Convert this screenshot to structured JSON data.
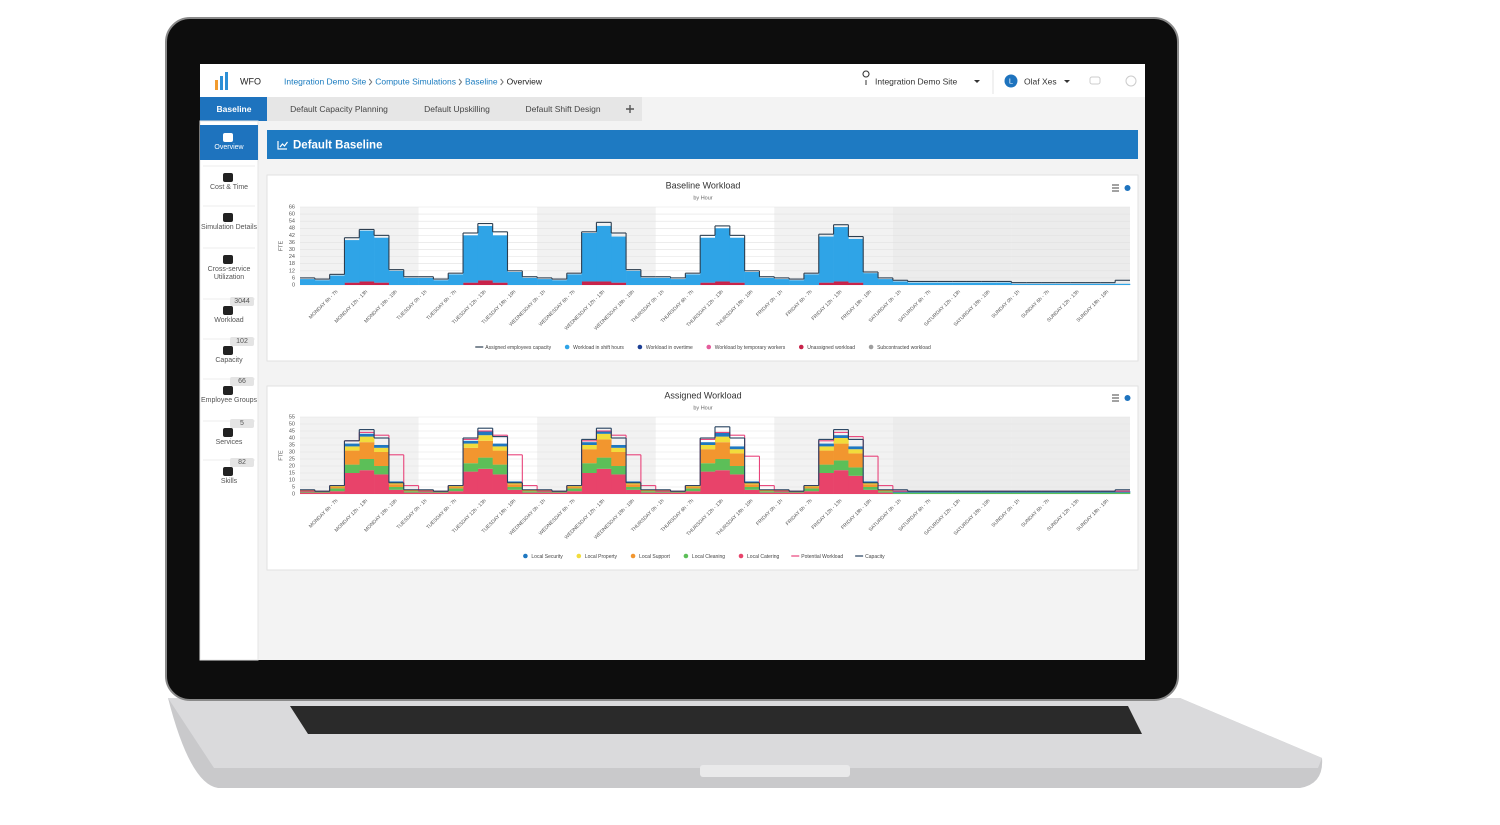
{
  "header": {
    "logo": "WFO",
    "breadcrumb": [
      "Integration Demo Site",
      "Compute Simulations",
      "Baseline",
      "Overview"
    ],
    "site": "Integration Demo Site",
    "user_initial": "L",
    "user": "Olaf Xes"
  },
  "tabs": [
    "Baseline",
    "Default Capacity Planning",
    "Default Upskilling",
    "Default Shift Design"
  ],
  "sidebar": [
    {
      "label": "Overview"
    },
    {
      "label": "Cost & Time"
    },
    {
      "label": "Simulation Details"
    },
    {
      "label": "Cross-service Utilization"
    },
    {
      "label": "Workload",
      "badge": 3044
    },
    {
      "label": "Capacity",
      "badge": 102
    },
    {
      "label": "Employee Groups",
      "badge": 66
    },
    {
      "label": "Services",
      "badge": 5
    },
    {
      "label": "Skills",
      "badge": 82
    }
  ],
  "panel": {
    "title": "Default Baseline"
  },
  "chart_data": [
    {
      "type": "bar",
      "stacked": true,
      "title": "Baseline Workload",
      "subtitle": "by Hour",
      "y_label": "FTE",
      "categories": [
        null,
        null,
        "MONDAY 6h - 7h",
        null,
        "MONDAY 12h - 13h",
        null,
        "MONDAY 18h - 19h",
        null,
        "TUESDAY 0h - 1h",
        null,
        "TUESDAY 6h - 7h",
        null,
        "TUESDAY 12h - 13h",
        null,
        "TUESDAY 18h - 19h",
        null,
        "WEDNESDAY 0h - 1h",
        null,
        "WEDNESDAY 6h - 7h",
        null,
        "WEDNESDAY 12h - 13h",
        null,
        "WEDNESDAY 18h - 19h",
        null,
        "THURSDAY 0h - 1h",
        null,
        "THURSDAY 6h - 7h",
        null,
        "THURSDAY 12h - 13h",
        null,
        "THURSDAY 18h - 19h",
        null,
        "FRIDAY 0h - 1h",
        null,
        "FRIDAY 6h - 7h",
        null,
        "FRIDAY 12h - 13h",
        null,
        "FRIDAY 18h - 19h",
        null,
        "SATURDAY 0h - 1h",
        null,
        "SATURDAY 6h - 7h",
        null,
        "SATURDAY 12h - 13h",
        null,
        "SATURDAY 18h - 19h",
        null,
        "SUNDAY 0h - 1h",
        null,
        "SUNDAY 6h - 7h",
        null,
        "SUNDAY 12h - 13h",
        null,
        "SUNDAY 18h - 19h",
        null
      ],
      "ylim": [
        0,
        66
      ],
      "yticks": [
        0,
        6,
        12,
        18,
        24,
        30,
        36,
        42,
        48,
        54,
        60,
        66
      ],
      "grid": true,
      "series": [
        {
          "name": "Assigned employees capacity",
          "color": "#2c3e50",
          "type": "line",
          "values": [
            6,
            5,
            9,
            40,
            47,
            42,
            13,
            7,
            7,
            5,
            10,
            44,
            52,
            45,
            12,
            7,
            6,
            5,
            10,
            45,
            53,
            44,
            13,
            7,
            7,
            6,
            10,
            42,
            50,
            42,
            12,
            7,
            6,
            5,
            10,
            43,
            51,
            41,
            11,
            6,
            4,
            3,
            3,
            3,
            3,
            3,
            3,
            3,
            2,
            2,
            2,
            2,
            2,
            2,
            2,
            4
          ]
        },
        {
          "name": "Workload in shift hours",
          "color": "#2fa4e7",
          "type": "bar",
          "values": [
            5,
            4,
            8,
            36,
            43,
            38,
            12,
            6,
            6,
            4,
            9,
            40,
            46,
            40,
            11,
            6,
            5,
            4,
            9,
            41,
            47,
            39,
            12,
            6,
            6,
            5,
            9,
            38,
            45,
            38,
            11,
            6,
            5,
            4,
            9,
            39,
            46,
            37,
            10,
            5,
            3,
            2,
            2,
            2,
            2,
            2,
            2,
            2,
            1,
            1,
            1,
            1,
            1,
            1,
            1,
            1
          ]
        },
        {
          "name": "Workload in overtime",
          "color": "#1c3f95",
          "type": "bar"
        },
        {
          "name": "Workload by temporary workers",
          "color": "#e45c9c",
          "type": "bar"
        },
        {
          "name": "Unassigned workload",
          "color": "#c8234a",
          "type": "bar",
          "values": [
            0,
            0,
            0,
            2,
            3,
            2,
            0,
            0,
            0,
            0,
            0,
            2,
            4,
            2,
            0,
            0,
            0,
            0,
            0,
            3,
            3,
            2,
            0,
            0,
            0,
            0,
            0,
            2,
            3,
            2,
            0,
            0,
            0,
            0,
            0,
            2,
            3,
            2,
            0,
            0,
            0,
            0,
            0,
            0,
            0,
            0,
            0,
            0,
            0,
            0,
            0,
            0,
            0,
            0,
            0,
            0
          ]
        },
        {
          "name": "Subcontracted workload",
          "color": "#9e9e9e",
          "type": "bar"
        }
      ]
    },
    {
      "type": "bar",
      "stacked": true,
      "title": "Assigned Workload",
      "subtitle": "by Hour",
      "y_label": "FTE",
      "categories": [
        null,
        null,
        "MONDAY 6h - 7h",
        null,
        "MONDAY 12h - 13h",
        null,
        "MONDAY 18h - 19h",
        null,
        "TUESDAY 0h - 1h",
        null,
        "TUESDAY 6h - 7h",
        null,
        "TUESDAY 12h - 13h",
        null,
        "TUESDAY 18h - 19h",
        null,
        "WEDNESDAY 0h - 1h",
        null,
        "WEDNESDAY 6h - 7h",
        null,
        "WEDNESDAY 12h - 13h",
        null,
        "WEDNESDAY 18h - 19h",
        null,
        "THURSDAY 0h - 1h",
        null,
        "THURSDAY 6h - 7h",
        null,
        "THURSDAY 12h - 13h",
        null,
        "THURSDAY 18h - 19h",
        null,
        "FRIDAY 0h - 1h",
        null,
        "FRIDAY 6h - 7h",
        null,
        "FRIDAY 12h - 13h",
        null,
        "FRIDAY 18h - 19h",
        null,
        "SATURDAY 0h - 1h",
        null,
        "SATURDAY 6h - 7h",
        null,
        "SATURDAY 12h - 13h",
        null,
        "SATURDAY 18h - 19h",
        null,
        "SUNDAY 0h - 1h",
        null,
        "SUNDAY 6h - 7h",
        null,
        "SUNDAY 12h - 13h",
        null,
        "SUNDAY 18h - 19h",
        null
      ],
      "ylim": [
        0,
        55
      ],
      "yticks": [
        0,
        5,
        10,
        15,
        20,
        25,
        30,
        35,
        40,
        45,
        50,
        55
      ],
      "grid": true,
      "series": [
        {
          "name": "Local Security",
          "color": "#1f78c1",
          "type": "bar",
          "values": [
            0,
            0,
            0,
            2,
            2,
            2,
            1,
            0,
            0,
            0,
            0,
            2,
            3,
            2,
            1,
            0,
            0,
            0,
            0,
            2,
            2,
            2,
            1,
            0,
            0,
            0,
            0,
            2,
            3,
            2,
            1,
            0,
            0,
            0,
            0,
            2,
            2,
            2,
            1,
            0,
            1,
            1,
            1,
            1,
            1,
            1,
            1,
            1,
            1,
            1,
            1,
            1,
            1,
            1,
            1,
            1
          ]
        },
        {
          "name": "Local Property",
          "color": "#f2dc3c",
          "type": "bar",
          "values": [
            0,
            0,
            1,
            3,
            4,
            3,
            1,
            0,
            0,
            0,
            1,
            3,
            4,
            3,
            1,
            0,
            0,
            0,
            1,
            3,
            4,
            3,
            1,
            0,
            0,
            0,
            1,
            3,
            4,
            3,
            1,
            0,
            0,
            0,
            1,
            3,
            4,
            3,
            1,
            0,
            0,
            0,
            0,
            0,
            0,
            0,
            0,
            0,
            0,
            0,
            0,
            0,
            0,
            0,
            0,
            0
          ]
        },
        {
          "name": "Local Support",
          "color": "#f2962f",
          "type": "bar",
          "values": [
            1,
            0,
            1,
            10,
            12,
            10,
            2,
            1,
            1,
            0,
            1,
            11,
            12,
            10,
            2,
            1,
            1,
            0,
            1,
            10,
            13,
            10,
            2,
            1,
            1,
            0,
            1,
            10,
            12,
            9,
            2,
            1,
            1,
            0,
            1,
            10,
            12,
            10,
            2,
            1,
            0,
            0,
            0,
            0,
            0,
            0,
            0,
            0,
            0,
            0,
            0,
            0,
            0,
            0,
            0,
            0
          ]
        },
        {
          "name": "Local Cleaning",
          "color": "#5cbf58",
          "type": "bar",
          "values": [
            1,
            1,
            2,
            6,
            8,
            6,
            2,
            1,
            1,
            1,
            2,
            6,
            8,
            7,
            2,
            1,
            1,
            1,
            2,
            7,
            8,
            6,
            2,
            1,
            1,
            1,
            2,
            6,
            8,
            6,
            2,
            1,
            1,
            1,
            2,
            6,
            7,
            6,
            2,
            1,
            1,
            1,
            1,
            1,
            1,
            1,
            1,
            1,
            1,
            1,
            1,
            1,
            1,
            1,
            1,
            1
          ]
        },
        {
          "name": "Local Catering",
          "color": "#e8436a",
          "type": "bar",
          "values": [
            1,
            1,
            2,
            15,
            17,
            14,
            3,
            1,
            1,
            1,
            2,
            16,
            18,
            14,
            3,
            1,
            1,
            1,
            2,
            15,
            18,
            14,
            3,
            1,
            1,
            1,
            2,
            16,
            17,
            14,
            3,
            1,
            1,
            1,
            2,
            15,
            17,
            13,
            3,
            1,
            0,
            0,
            0,
            0,
            0,
            0,
            0,
            0,
            0,
            0,
            0,
            0,
            0,
            0,
            0,
            0
          ]
        },
        {
          "name": "Potential Workload",
          "color": "#e8437a",
          "type": "line",
          "values": [
            2,
            2,
            6,
            38,
            44,
            42,
            28,
            6,
            2,
            2,
            6,
            39,
            45,
            42,
            28,
            6,
            2,
            2,
            6,
            38,
            45,
            42,
            28,
            6,
            2,
            2,
            6,
            39,
            44,
            42,
            27,
            6,
            2,
            2,
            6,
            38,
            44,
            41,
            27,
            6,
            2,
            2,
            2,
            2,
            2,
            2,
            2,
            2,
            2,
            2,
            2,
            2,
            2,
            2,
            2,
            2
          ]
        },
        {
          "name": "Capacity",
          "color": "#24405e",
          "type": "line",
          "values": [
            3,
            2,
            6,
            38,
            46,
            40,
            8,
            3,
            3,
            2,
            6,
            40,
            47,
            41,
            8,
            3,
            3,
            2,
            6,
            39,
            47,
            40,
            8,
            3,
            3,
            2,
            6,
            40,
            48,
            40,
            8,
            3,
            3,
            2,
            6,
            39,
            46,
            39,
            8,
            3,
            3,
            2,
            2,
            2,
            2,
            2,
            2,
            2,
            2,
            2,
            2,
            2,
            2,
            2,
            2,
            3
          ]
        }
      ]
    }
  ]
}
